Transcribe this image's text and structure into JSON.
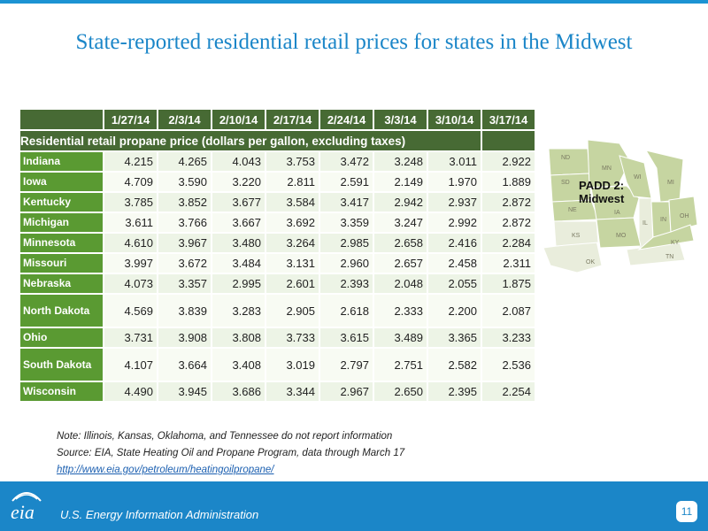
{
  "title": "State-reported residential retail prices for states in the Midwest",
  "table": {
    "dates": [
      "1/27/14",
      "2/3/14",
      "2/10/14",
      "2/17/14",
      "2/24/14",
      "3/3/14",
      "3/10/14",
      "3/17/14"
    ],
    "section_label": "Residential retail propane price (dollars per gallon, excluding taxes)",
    "rows": [
      {
        "state": "Indiana",
        "values": [
          "4.215",
          "4.265",
          "4.043",
          "3.753",
          "3.472",
          "3.248",
          "3.011",
          "2.922"
        ]
      },
      {
        "state": "Iowa",
        "values": [
          "4.709",
          "3.590",
          "3.220",
          "2.811",
          "2.591",
          "2.149",
          "1.970",
          "1.889"
        ]
      },
      {
        "state": "Kentucky",
        "values": [
          "3.785",
          "3.852",
          "3.677",
          "3.584",
          "3.417",
          "2.942",
          "2.937",
          "2.872"
        ]
      },
      {
        "state": "Michigan",
        "values": [
          "3.611",
          "3.766",
          "3.667",
          "3.692",
          "3.359",
          "3.247",
          "2.992",
          "2.872"
        ]
      },
      {
        "state": "Minnesota",
        "values": [
          "4.610",
          "3.967",
          "3.480",
          "3.264",
          "2.985",
          "2.658",
          "2.416",
          "2.284"
        ]
      },
      {
        "state": "Missouri",
        "values": [
          "3.997",
          "3.672",
          "3.484",
          "3.131",
          "2.960",
          "2.657",
          "2.458",
          "2.311"
        ]
      },
      {
        "state": "Nebraska",
        "values": [
          "4.073",
          "3.357",
          "2.995",
          "2.601",
          "2.393",
          "2.048",
          "2.055",
          "1.875"
        ]
      },
      {
        "state": "North Dakota",
        "values": [
          "4.569",
          "3.839",
          "3.283",
          "2.905",
          "2.618",
          "2.333",
          "2.200",
          "2.087"
        ]
      },
      {
        "state": "Ohio",
        "values": [
          "3.731",
          "3.908",
          "3.808",
          "3.733",
          "3.615",
          "3.489",
          "3.365",
          "3.233"
        ]
      },
      {
        "state": "South Dakota",
        "values": [
          "4.107",
          "3.664",
          "3.408",
          "3.019",
          "2.797",
          "2.751",
          "2.582",
          "2.536"
        ]
      },
      {
        "state": "Wisconsin",
        "values": [
          "4.490",
          "3.945",
          "3.686",
          "3.344",
          "2.967",
          "2.650",
          "2.395",
          "2.254"
        ]
      }
    ]
  },
  "notes": {
    "note": "Note: Illinois, Kansas, Oklahoma, and Tennessee do not report information",
    "source": "Source: EIA, State Heating Oil and Propane Program, data through March 17",
    "link": "http://www.eia.gov/petroleum/heatingoilpropane/"
  },
  "map": {
    "title_line1": "PADD 2:",
    "title_line2": "Midwest",
    "labels": {
      "ND": "ND",
      "SD": "SD",
      "NE": "NE",
      "KS": "KS",
      "OK": "OK",
      "MN": "MN",
      "IA": "IA",
      "MO": "MO",
      "WI": "WI",
      "IL": "IL",
      "MI": "MI",
      "IN": "IN",
      "OH": "OH",
      "KY": "KY",
      "TN": "TN"
    }
  },
  "footer": {
    "logo_text": "eia",
    "agency": "U.S. Energy Information Administration",
    "page_number": "11"
  },
  "colors": {
    "title": "#1b86c8",
    "header_green": "#476a34",
    "state_green": "#5a9a32",
    "footer_blue": "#1b86c8"
  }
}
